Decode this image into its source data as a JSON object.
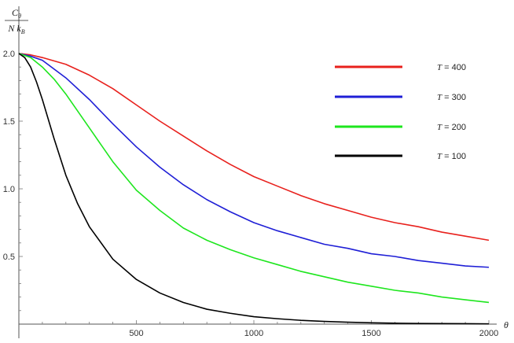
{
  "chart_data": {
    "type": "line",
    "xlabel": "θ",
    "ylabel_numerator": "C_θ",
    "ylabel_denominator": "N k_B",
    "xlim": [
      0,
      2000
    ],
    "ylim": [
      0,
      2.0
    ],
    "x_ticks": [
      500,
      1000,
      1500,
      2000
    ],
    "y_ticks": [
      0.5,
      1.0,
      1.5,
      2.0
    ],
    "x_tick_labels": [
      "500",
      "1000",
      "1500",
      "2000"
    ],
    "y_tick_labels": [
      "0.5",
      "1.0",
      "1.5",
      "2.0"
    ],
    "grid": false,
    "legend_placement": "top-right",
    "series": [
      {
        "name": "T = 400",
        "color": "#e8211d",
        "x": [
          0,
          50,
          100,
          200,
          300,
          400,
          500,
          600,
          700,
          800,
          900,
          1000,
          1100,
          1200,
          1300,
          1400,
          1500,
          1600,
          1700,
          1800,
          1900,
          2000
        ],
        "values": [
          2.0,
          1.99,
          1.97,
          1.92,
          1.84,
          1.74,
          1.62,
          1.5,
          1.39,
          1.28,
          1.18,
          1.09,
          1.02,
          0.95,
          0.89,
          0.84,
          0.79,
          0.75,
          0.72,
          0.68,
          0.65,
          0.62
        ]
      },
      {
        "name": "T = 300",
        "color": "#1f1fd6",
        "x": [
          0,
          50,
          100,
          200,
          300,
          400,
          500,
          600,
          700,
          800,
          900,
          1000,
          1100,
          1200,
          1300,
          1400,
          1500,
          1600,
          1700,
          1800,
          1900,
          2000
        ],
        "values": [
          2.0,
          1.98,
          1.95,
          1.82,
          1.66,
          1.48,
          1.31,
          1.16,
          1.03,
          0.92,
          0.83,
          0.75,
          0.69,
          0.64,
          0.59,
          0.56,
          0.52,
          0.5,
          0.47,
          0.45,
          0.43,
          0.42
        ]
      },
      {
        "name": "T = 200",
        "color": "#1ee61e",
        "x": [
          0,
          50,
          100,
          150,
          200,
          300,
          400,
          500,
          600,
          700,
          800,
          900,
          1000,
          1100,
          1200,
          1300,
          1400,
          1500,
          1600,
          1700,
          1800,
          1900,
          2000
        ],
        "values": [
          2.0,
          1.97,
          1.9,
          1.81,
          1.7,
          1.45,
          1.2,
          0.99,
          0.84,
          0.71,
          0.62,
          0.55,
          0.49,
          0.44,
          0.39,
          0.35,
          0.31,
          0.28,
          0.25,
          0.23,
          0.2,
          0.18,
          0.16
        ]
      },
      {
        "name": "T = 100",
        "color": "#000000",
        "x": [
          0,
          25,
          50,
          75,
          100,
          150,
          200,
          250,
          300,
          400,
          500,
          600,
          700,
          800,
          900,
          1000,
          1100,
          1200,
          1300,
          1400,
          1500,
          1600,
          1700,
          1800,
          1900,
          2000
        ],
        "values": [
          2.0,
          1.97,
          1.9,
          1.79,
          1.66,
          1.37,
          1.1,
          0.89,
          0.72,
          0.48,
          0.33,
          0.23,
          0.16,
          0.11,
          0.08,
          0.055,
          0.04,
          0.028,
          0.02,
          0.014,
          0.01,
          0.007,
          0.005,
          0.004,
          0.003,
          0.002
        ]
      }
    ]
  }
}
